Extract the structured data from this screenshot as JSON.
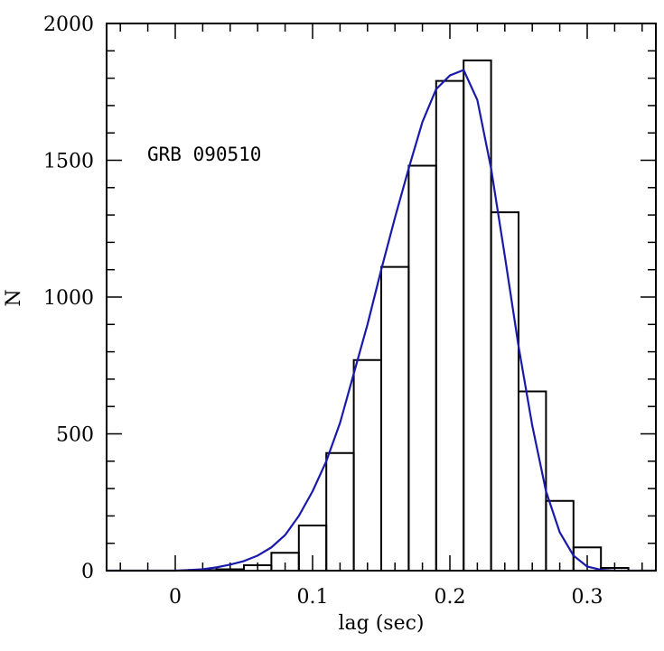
{
  "chart_data": {
    "type": "bar",
    "subtype": "histogram-with-fit-curve",
    "annotation": "GRB 090510",
    "xlabel": "lag (sec)",
    "ylabel": "N",
    "xlim": [
      -0.05,
      0.35
    ],
    "ylim": [
      0,
      2000
    ],
    "x_ticks": [
      0,
      0.1,
      0.2,
      0.3
    ],
    "x_tick_labels": [
      "0",
      "0.1",
      "0.2",
      "0.3"
    ],
    "y_ticks": [
      0,
      500,
      1000,
      1500,
      2000
    ],
    "y_tick_labels": [
      "0",
      "500",
      "1000",
      "1500",
      "2000"
    ],
    "x_minor_step": 0.02,
    "y_minor_step": 100,
    "grid": false,
    "colors": {
      "histogram": "#000000",
      "fit": "#1a1aaa",
      "axes": "#000000"
    },
    "histogram": {
      "bin_edges": [
        0.01,
        0.03,
        0.05,
        0.07,
        0.09,
        0.11,
        0.13,
        0.15,
        0.17,
        0.19,
        0.21,
        0.23,
        0.25,
        0.27,
        0.29,
        0.31,
        0.33
      ],
      "counts": [
        2,
        5,
        20,
        65,
        165,
        430,
        770,
        1110,
        1480,
        1790,
        1865,
        1310,
        655,
        255,
        85,
        10
      ]
    },
    "fit": {
      "x": [
        -0.05,
        0.0,
        0.01,
        0.02,
        0.03,
        0.04,
        0.05,
        0.06,
        0.07,
        0.08,
        0.09,
        0.1,
        0.11,
        0.12,
        0.13,
        0.14,
        0.15,
        0.16,
        0.17,
        0.18,
        0.19,
        0.2,
        0.21,
        0.22,
        0.23,
        0.24,
        0.25,
        0.26,
        0.27,
        0.28,
        0.29,
        0.3,
        0.31,
        0.32,
        0.33,
        0.35
      ],
      "y": [
        0,
        0,
        2,
        5,
        12,
        22,
        35,
        55,
        85,
        130,
        200,
        290,
        400,
        540,
        720,
        900,
        1100,
        1290,
        1470,
        1640,
        1760,
        1810,
        1830,
        1720,
        1470,
        1150,
        820,
        530,
        290,
        140,
        55,
        15,
        3,
        0,
        0,
        0
      ]
    }
  }
}
